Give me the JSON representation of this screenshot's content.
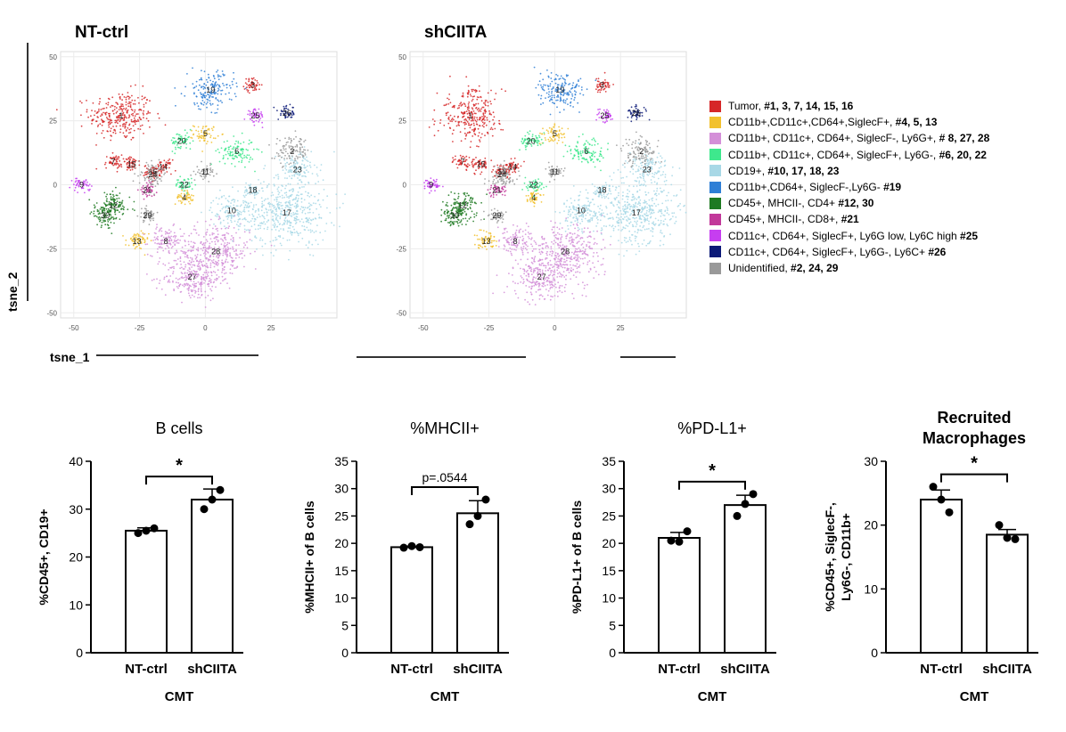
{
  "tsne": {
    "plots": [
      {
        "title": "NT-ctrl"
      },
      {
        "title": "shCIITA"
      }
    ],
    "xlabel": "tsne_1",
    "ylabel": "tsne_2",
    "xticks": [
      -50,
      -25,
      0,
      25
    ],
    "yticks": [
      50,
      25,
      0,
      -25,
      -50
    ],
    "xlim": [
      -55,
      50
    ],
    "ylim": [
      -52,
      52
    ]
  },
  "clusters": [
    {
      "id": "1",
      "x": -32,
      "y": 27,
      "group": 0
    },
    {
      "id": "3",
      "x": 18,
      "y": 39,
      "group": 0
    },
    {
      "id": "7",
      "x": -35,
      "y": 9,
      "group": 0
    },
    {
      "id": "14",
      "x": -16,
      "y": 7,
      "group": 0
    },
    {
      "id": "15",
      "x": -28,
      "y": 8,
      "group": 0
    },
    {
      "id": "16",
      "x": -20,
      "y": 5,
      "group": 0
    },
    {
      "id": "4",
      "x": -8,
      "y": -5,
      "group": 1
    },
    {
      "id": "5",
      "x": 0,
      "y": 20,
      "group": 1
    },
    {
      "id": "13",
      "x": -26,
      "y": -22,
      "group": 1
    },
    {
      "id": "8",
      "x": -15,
      "y": -22,
      "group": 2
    },
    {
      "id": "27",
      "x": -5,
      "y": -36,
      "group": 2
    },
    {
      "id": "28",
      "x": 4,
      "y": -26,
      "group": 2
    },
    {
      "id": "6",
      "x": 12,
      "y": 13,
      "group": 3
    },
    {
      "id": "20",
      "x": -9,
      "y": 17,
      "group": 3
    },
    {
      "id": "22",
      "x": -8,
      "y": 0,
      "group": 3
    },
    {
      "id": "10",
      "x": 10,
      "y": -10,
      "group": 4
    },
    {
      "id": "17",
      "x": 31,
      "y": -11,
      "group": 4
    },
    {
      "id": "18",
      "x": 18,
      "y": -2,
      "group": 4
    },
    {
      "id": "23",
      "x": 35,
      "y": 6,
      "group": 4
    },
    {
      "id": "19",
      "x": 2,
      "y": 37,
      "group": 5
    },
    {
      "id": "12",
      "x": -35,
      "y": -8,
      "group": 6
    },
    {
      "id": "30",
      "x": -38,
      "y": -12,
      "group": 6
    },
    {
      "id": "21",
      "x": -22,
      "y": -2,
      "group": 7
    },
    {
      "id": "25",
      "x": 19,
      "y": 27,
      "group": 8
    },
    {
      "id": "26",
      "x": 31,
      "y": 28,
      "group": 9
    },
    {
      "id": "2",
      "x": 33,
      "y": 13,
      "group": 10
    },
    {
      "id": "24",
      "x": -20,
      "y": 4,
      "group": 10
    },
    {
      "id": "29",
      "x": -22,
      "y": -12,
      "group": 10
    },
    {
      "id": "11",
      "x": 0,
      "y": 5,
      "group": 10
    },
    {
      "id": "9",
      "x": -47,
      "y": 0,
      "group": 8
    }
  ],
  "legend": [
    {
      "color": "#d62728",
      "text": "Tumor, ",
      "bold": "#1, 3, 7, 14, 15, 16"
    },
    {
      "color": "#f2c12e",
      "text": "CD11b+,CD11c+,CD64+,SiglecF+, ",
      "bold": "#4, 5, 13"
    },
    {
      "color": "#d48fd8",
      "text": "CD11b+, CD11c+, CD64+, SiglecF-, Ly6G+, ",
      "bold": "# 8, 27, 28"
    },
    {
      "color": "#3ee88d",
      "text": "CD11b+, CD11c+, CD64+, SiglecF+, Ly6G-, ",
      "bold": "#6, 20, 22"
    },
    {
      "color": "#a8d8e6",
      "text": "CD19+, ",
      "bold": "#10, 17, 18, 23"
    },
    {
      "color": "#2f7fd6",
      "text": "CD11b+,CD64+, SiglecF-,Ly6G- ",
      "bold": "#19"
    },
    {
      "color": "#1e7a22",
      "text": "CD45+, MHCII-, CD4+ ",
      "bold": "#12, 30"
    },
    {
      "color": "#c2389a",
      "text": "CD45+, MHCII-, CD8+, ",
      "bold": "#21"
    },
    {
      "color": "#c63ef0",
      "text": "CD11c+, CD64+, SiglecF+, Ly6G low, Ly6C high ",
      "bold": "#25"
    },
    {
      "color": "#0c1a78",
      "text": " CD11c+, CD64+, SiglecF+, Ly6G-, Ly6C+ ",
      "bold": "#26"
    },
    {
      "color": "#999999",
      "text": "Unidentified, ",
      "bold": "#2, 24, 29"
    }
  ],
  "chart_data": [
    {
      "type": "bar",
      "title": "B cells",
      "ylabel": "%CD45+, CD19+",
      "ylim": [
        0,
        40
      ],
      "yticks": [
        0,
        10,
        20,
        30,
        40
      ],
      "categories": [
        "NT-ctrl",
        "shCIITA"
      ],
      "xlabel": "CMT",
      "values": [
        25.5,
        32
      ],
      "errors": [
        0.6,
        2.2
      ],
      "points": [
        [
          25,
          26,
          25.5
        ],
        [
          30,
          34,
          32
        ]
      ],
      "annotation": "*"
    },
    {
      "type": "bar",
      "title": "%MHCII+",
      "ylabel": "%MHCII+ of B cells",
      "ylim": [
        0,
        35
      ],
      "yticks": [
        0,
        5,
        10,
        15,
        20,
        25,
        30,
        35
      ],
      "categories": [
        "NT-ctrl",
        "shCIITA"
      ],
      "xlabel": "CMT",
      "values": [
        19.3,
        25.5
      ],
      "errors": [
        0.2,
        2.3
      ],
      "points": [
        [
          19.2,
          19.3,
          19.5
        ],
        [
          23.5,
          28,
          25
        ]
      ],
      "annotation": "p=.0544"
    },
    {
      "type": "bar",
      "title": "%PD-L1+",
      "ylabel": "%PD-L1+ of B cells",
      "ylim": [
        0,
        35
      ],
      "yticks": [
        0,
        5,
        10,
        15,
        20,
        25,
        30,
        35
      ],
      "categories": [
        "NT-ctrl",
        "shCIITA"
      ],
      "xlabel": "CMT",
      "values": [
        21,
        27
      ],
      "errors": [
        1.0,
        1.8
      ],
      "points": [
        [
          20.5,
          22.2,
          20.3
        ],
        [
          25,
          29,
          27.2
        ]
      ],
      "annotation": "*"
    },
    {
      "type": "bar",
      "title": [
        "Recruited",
        "Macrophages"
      ],
      "ylabel": [
        "%CD45+, SiglecF-,",
        "Ly6G-, CD11b+"
      ],
      "ylim": [
        0,
        30
      ],
      "yticks": [
        0,
        10,
        20,
        30
      ],
      "categories": [
        "NT-ctrl",
        "shCIITA"
      ],
      "xlabel": "CMT",
      "values": [
        24,
        18.5
      ],
      "errors": [
        1.5,
        0.8
      ],
      "points": [
        [
          26,
          22,
          24
        ],
        [
          20,
          17.8,
          18
        ]
      ],
      "annotation": "*"
    }
  ]
}
